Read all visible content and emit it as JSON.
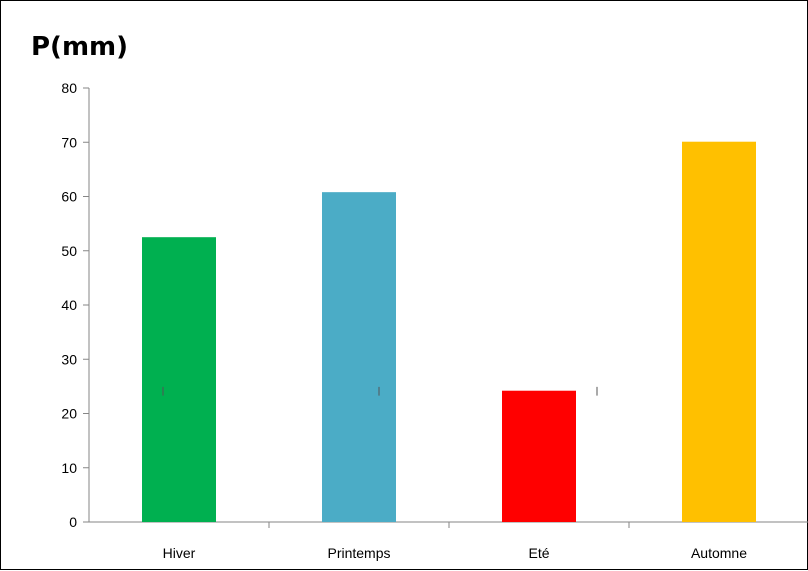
{
  "chart_data": {
    "type": "bar",
    "title": "P(mm)",
    "xlabel": "",
    "ylabel": "",
    "categories": [
      "Hiver",
      "Printemps",
      "Eté",
      "Automne"
    ],
    "values": [
      52.5,
      60.8,
      24.2,
      70.1
    ],
    "colors": [
      "#00b050",
      "#4bacc6",
      "#ff0000",
      "#ffc000"
    ],
    "ylim": [
      0,
      80
    ],
    "yticks": [
      0,
      10,
      20,
      30,
      40,
      50,
      60,
      70,
      80
    ],
    "grid": false,
    "legend": "none"
  }
}
